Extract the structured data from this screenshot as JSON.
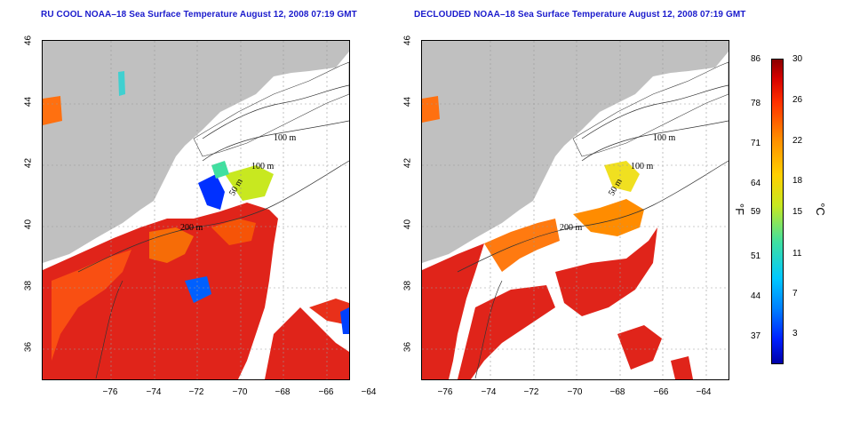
{
  "left_title": "RU COOL NOAA–18 Sea Surface Temperature August 12, 2008 07:19 GMT",
  "right_title": "DECLOUDED NOAA–18 Sea Surface Temperature August 12, 2008 07:19 GMT",
  "lat_ticks": [
    "46",
    "44",
    "42",
    "40",
    "38",
    "36"
  ],
  "lon_ticks": [
    "−76",
    "−74",
    "−72",
    "−70",
    "−68",
    "−66",
    "−64"
  ],
  "contours": [
    "100 m",
    "100 m",
    "50 m",
    "200 m"
  ],
  "colorbar": {
    "fahrenheit": [
      "86",
      "78",
      "71",
      "64",
      "59",
      "51",
      "44",
      "37"
    ],
    "celsius": [
      "30",
      "26",
      "22",
      "18",
      "15",
      "11",
      "7",
      "3"
    ],
    "unit_f": "°F",
    "unit_c": "°C"
  },
  "colors": {
    "land": "#c0c0c0",
    "hot": "#e0241a",
    "title": "#1a1acc"
  }
}
